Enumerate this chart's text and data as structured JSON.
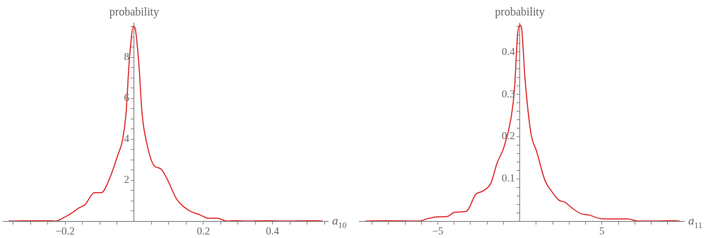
{
  "chart_data": [
    {
      "type": "line",
      "ylabel": "probability",
      "xlabel": "a$_{10}$",
      "marker": "none",
      "grid": false,
      "x": [
        -0.363,
        -0.247,
        -0.227,
        -0.2,
        -0.18,
        -0.16,
        -0.143,
        -0.115,
        -0.095,
        -0.071,
        -0.047,
        -0.034,
        -0.024,
        -0.014,
        -0.002,
        0.003,
        0.013,
        0.023,
        0.036,
        0.057,
        0.077,
        0.094,
        0.124,
        0.158,
        0.192,
        0.213,
        0.24,
        0.267,
        0.294,
        0.321,
        0.382,
        0.43,
        0.518,
        0.545
      ],
      "series": [
        {
          "color": "#dd2222",
          "values": [
            0,
            0.02,
            0,
            0.2,
            0.4,
            0.64,
            0.79,
            1.39,
            1.39,
            2.09,
            3.25,
            3.94,
            5.2,
            7.9,
            9.53,
            9.39,
            7.77,
            5.2,
            3.83,
            2.72,
            2.55,
            2.09,
            1.04,
            0.52,
            0.29,
            0.14,
            0.14,
            0,
            0.02,
            0,
            0.02,
            0,
            0.02,
            0
          ]
        }
      ],
      "xlim": [
        -0.38,
        0.56
      ],
      "ylim": [
        0,
        9.7
      ],
      "xticks": [
        {
          "value": -0.35,
          "label": null
        },
        {
          "value": -0.3,
          "label": null
        },
        {
          "value": -0.25,
          "label": null
        },
        {
          "value": -0.2,
          "label": "−0.2"
        },
        {
          "value": -0.15,
          "label": null
        },
        {
          "value": -0.1,
          "label": null
        },
        {
          "value": -0.05,
          "label": null
        },
        {
          "value": 0.05,
          "label": null
        },
        {
          "value": 0.1,
          "label": null
        },
        {
          "value": 0.15,
          "label": null
        },
        0.2,
        {
          "value": 0.25,
          "label": null
        },
        {
          "value": 0.3,
          "label": null
        },
        {
          "value": 0.35,
          "label": null
        },
        0.4,
        {
          "value": 0.45,
          "label": null
        },
        {
          "value": 0.5,
          "label": null
        },
        {
          "value": 0.55,
          "label": null
        }
      ],
      "yticks": [
        {
          "value": 0.5,
          "label": null
        },
        {
          "value": 1,
          "label": null
        },
        {
          "value": 1.5,
          "label": null
        },
        2,
        {
          "value": 2.5,
          "label": null
        },
        {
          "value": 3,
          "label": null
        },
        {
          "value": 3.5,
          "label": null
        },
        4,
        {
          "value": 4.5,
          "label": null
        },
        {
          "value": 5,
          "label": null
        },
        {
          "value": 5.5,
          "label": null
        },
        6,
        {
          "value": 6.5,
          "label": null
        },
        {
          "value": 7,
          "label": null
        },
        {
          "value": 7.5,
          "label": null
        },
        8,
        {
          "value": 8.5,
          "label": null
        },
        {
          "value": 9,
          "label": null
        },
        {
          "value": 9.5,
          "label": null
        }
      ]
    },
    {
      "type": "line",
      "ylabel": "probability",
      "xlabel": "a$_{11}$",
      "marker": "none",
      "grid": false,
      "x": [
        -9.4,
        -8.11,
        -6.11,
        -5.69,
        -4.97,
        -4.4,
        -3.97,
        -3.26,
        -2.69,
        -2.26,
        -1.76,
        -1.4,
        -0.97,
        -0.54,
        -0.33,
        -0.14,
        0,
        0.1,
        0.31,
        0.67,
        1.03,
        1.53,
        1.89,
        2.39,
        2.74,
        3.17,
        3.74,
        4.24,
        4.89,
        5.74,
        6.6,
        7.17,
        8.31,
        9.17,
        9.74
      ],
      "series": [
        {
          "color": "#dd2222",
          "values": [
            0,
            0.001,
            0,
            0.005,
            0.01,
            0.011,
            0.021,
            0.023,
            0.063,
            0.071,
            0.09,
            0.136,
            0.175,
            0.243,
            0.311,
            0.441,
            0.464,
            0.458,
            0.339,
            0.209,
            0.164,
            0.096,
            0.073,
            0.049,
            0.045,
            0.031,
            0.017,
            0.014,
            0.006,
            0.005,
            0.005,
            0,
            0,
            0.001,
            0
          ]
        }
      ],
      "xlim": [
        -9.8,
        10
      ],
      "ylim": [
        0,
        0.47
      ],
      "xticks": [
        {
          "value": -9,
          "label": null
        },
        {
          "value": -8,
          "label": null
        },
        {
          "value": -7,
          "label": null
        },
        {
          "value": -6,
          "label": null
        },
        {
          "value": -5,
          "label": "−5"
        },
        {
          "value": -4,
          "label": null
        },
        {
          "value": -3,
          "label": null
        },
        {
          "value": -2,
          "label": null
        },
        {
          "value": -1,
          "label": null
        },
        {
          "value": 1,
          "label": null
        },
        {
          "value": 2,
          "label": null
        },
        {
          "value": 3,
          "label": null
        },
        {
          "value": 4,
          "label": null
        },
        5,
        {
          "value": 6,
          "label": null
        },
        {
          "value": 7,
          "label": null
        },
        {
          "value": 8,
          "label": null
        },
        {
          "value": 9,
          "label": null
        }
      ],
      "yticks": [
        {
          "value": 0.02,
          "label": null
        },
        {
          "value": 0.04,
          "label": null
        },
        {
          "value": 0.06,
          "label": null
        },
        {
          "value": 0.08,
          "label": null
        },
        0.1,
        {
          "value": 0.12,
          "label": null
        },
        {
          "value": 0.14,
          "label": null
        },
        {
          "value": 0.16,
          "label": null
        },
        {
          "value": 0.18,
          "label": null
        },
        0.2,
        {
          "value": 0.22,
          "label": null
        },
        {
          "value": 0.24,
          "label": null
        },
        {
          "value": 0.26,
          "label": null
        },
        {
          "value": 0.28,
          "label": null
        },
        0.3,
        {
          "value": 0.32,
          "label": null
        },
        {
          "value": 0.34,
          "label": null
        },
        {
          "value": 0.36,
          "label": null
        },
        {
          "value": 0.38,
          "label": null
        },
        0.4,
        {
          "value": 0.42,
          "label": null
        },
        {
          "value": 0.44,
          "label": null
        },
        {
          "value": 0.46,
          "label": null
        }
      ]
    }
  ]
}
